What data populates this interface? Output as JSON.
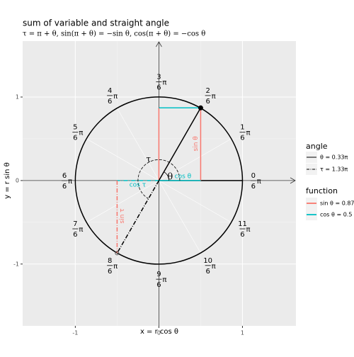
{
  "chart_data": {
    "type": "unit-circle",
    "title": "sum of variable and straight angle",
    "subtitle": "τ = π + θ, sin(π + θ) = −sin θ, cos(π + θ) = −cos θ",
    "x_label": "x = r cos θ",
    "y_label": "y = r sin θ",
    "xlim": [
      -1.63,
      1.64
    ],
    "ylim": [
      -1.74,
      1.67
    ],
    "xticks": [
      -1,
      0,
      1
    ],
    "yticks": [
      -1,
      0,
      1
    ],
    "grid": true,
    "pi_symbol": "π",
    "angle_ticks": [
      {
        "numerator": 0,
        "denominator": 6
      },
      {
        "numerator": 1,
        "denominator": 6
      },
      {
        "numerator": 2,
        "denominator": 6
      },
      {
        "numerator": 3,
        "denominator": 6
      },
      {
        "numerator": 4,
        "denominator": 6
      },
      {
        "numerator": 5,
        "denominator": 6
      },
      {
        "numerator": 6,
        "denominator": 6
      },
      {
        "numerator": 7,
        "denominator": 6
      },
      {
        "numerator": 8,
        "denominator": 6
      },
      {
        "numerator": 9,
        "denominator": 6
      },
      {
        "numerator": 10,
        "denominator": 6
      },
      {
        "numerator": 11,
        "denominator": 6
      }
    ],
    "theta": {
      "name": "θ = 0.33π",
      "label": "θ",
      "value": 0.33,
      "cos": 0.5,
      "sin": 0.87
    },
    "tau": {
      "name": "τ = 1.33π",
      "label": "τ",
      "value": 1.33,
      "cos": -0.5,
      "sin": -0.87
    },
    "annotations": {
      "cos_theta": "cos θ",
      "sin_theta": "sin θ",
      "cos_tau": "cos τ",
      "sin_tau": "sin τ"
    },
    "legend": {
      "angle_title": "angle",
      "function_title": "function",
      "sin_name": "sin θ = 0.87",
      "cos_name": "cos θ = 0.5",
      "sin_color": "#f8766d",
      "cos_color": "#00bfc4"
    }
  }
}
